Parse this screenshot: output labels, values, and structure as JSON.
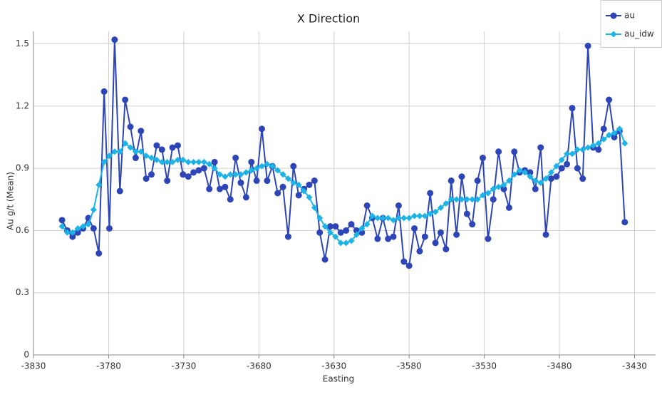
{
  "chart_data": {
    "type": "line",
    "title": "X Direction",
    "xlabel": "Easting",
    "ylabel": "Au g/t (Mean)",
    "x": [
      -3811,
      -3807.5,
      -3804,
      -3800.5,
      -3797,
      -3793.5,
      -3790,
      -3786.5,
      -3783,
      -3779.5,
      -3776,
      -3772.5,
      -3769,
      -3765.5,
      -3762,
      -3758.5,
      -3755,
      -3751.5,
      -3748,
      -3744.5,
      -3741,
      -3737.5,
      -3734,
      -3730.5,
      -3727,
      -3723.5,
      -3720,
      -3716.5,
      -3713,
      -3709.5,
      -3706,
      -3702.5,
      -3699,
      -3695.5,
      -3692,
      -3688.5,
      -3685,
      -3681.5,
      -3678,
      -3674.5,
      -3671,
      -3667.5,
      -3664,
      -3660.5,
      -3657,
      -3653.5,
      -3650,
      -3646.5,
      -3643,
      -3639.5,
      -3636,
      -3632.5,
      -3629,
      -3625.5,
      -3622,
      -3618.5,
      -3615,
      -3611.5,
      -3608,
      -3604.5,
      -3601,
      -3597.5,
      -3594,
      -3590.5,
      -3587,
      -3583.5,
      -3580,
      -3576.5,
      -3573,
      -3569.5,
      -3566,
      -3562.5,
      -3559,
      -3555.5,
      -3552,
      -3548.5,
      -3545,
      -3541.5,
      -3538,
      -3534.5,
      -3531,
      -3527.5,
      -3524,
      -3520.5,
      -3517,
      -3513.5,
      -3510,
      -3506.5,
      -3503,
      -3499.5,
      -3496,
      -3492.5,
      -3489,
      -3485.5,
      -3482,
      -3478.5,
      -3475,
      -3471.5,
      -3468,
      -3464.5,
      -3461,
      -3457.5,
      -3454,
      -3450.5,
      -3447,
      -3443.5,
      -3440,
      -3436.5
    ],
    "series": [
      {
        "name": "au",
        "color": "#2e45b8",
        "marker": "circle",
        "values": [
          0.65,
          0.6,
          0.57,
          0.59,
          0.61,
          0.66,
          0.61,
          0.49,
          1.27,
          0.61,
          1.52,
          0.79,
          1.23,
          1.1,
          0.95,
          1.08,
          0.85,
          0.87,
          1.01,
          0.99,
          0.84,
          1.0,
          1.01,
          0.87,
          0.86,
          0.88,
          0.89,
          0.9,
          0.8,
          0.93,
          0.8,
          0.81,
          0.75,
          0.95,
          0.83,
          0.76,
          0.93,
          0.84,
          1.09,
          0.84,
          0.91,
          0.78,
          0.81,
          0.57,
          0.91,
          0.77,
          0.8,
          0.82,
          0.84,
          0.59,
          0.46,
          0.62,
          0.62,
          0.59,
          0.6,
          0.63,
          0.6,
          0.59,
          0.72,
          0.66,
          0.56,
          0.66,
          0.56,
          0.57,
          0.72,
          0.45,
          0.43,
          0.61,
          0.5,
          0.57,
          0.78,
          0.54,
          0.59,
          0.51,
          0.84,
          0.58,
          0.86,
          0.68,
          0.63,
          0.84,
          0.95,
          0.56,
          0.75,
          0.98,
          0.8,
          0.71,
          0.98,
          0.88,
          0.89,
          0.88,
          0.8,
          1.0,
          0.58,
          0.85,
          0.86,
          0.9,
          0.92,
          1.19,
          0.9,
          0.85,
          1.49,
          1.0,
          0.99,
          1.09,
          1.23,
          1.05,
          1.08,
          0.64
        ]
      },
      {
        "name": "au_idw",
        "color": "#1cb3e6",
        "marker": "diamond",
        "values": [
          0.62,
          0.59,
          0.59,
          0.61,
          0.62,
          0.63,
          0.7,
          0.82,
          0.93,
          0.96,
          0.98,
          0.98,
          1.02,
          1.0,
          0.98,
          0.98,
          0.96,
          0.95,
          0.94,
          0.93,
          0.93,
          0.93,
          0.94,
          0.94,
          0.93,
          0.93,
          0.93,
          0.93,
          0.92,
          0.9,
          0.87,
          0.86,
          0.87,
          0.87,
          0.87,
          0.88,
          0.89,
          0.9,
          0.91,
          0.92,
          0.91,
          0.89,
          0.87,
          0.85,
          0.83,
          0.82,
          0.79,
          0.76,
          0.71,
          0.66,
          0.62,
          0.59,
          0.57,
          0.54,
          0.54,
          0.55,
          0.58,
          0.61,
          0.63,
          0.67,
          0.66,
          0.66,
          0.66,
          0.65,
          0.66,
          0.66,
          0.66,
          0.67,
          0.67,
          0.67,
          0.68,
          0.69,
          0.71,
          0.73,
          0.75,
          0.75,
          0.75,
          0.75,
          0.75,
          0.75,
          0.77,
          0.78,
          0.8,
          0.81,
          0.82,
          0.84,
          0.87,
          0.89,
          0.88,
          0.86,
          0.84,
          0.83,
          0.85,
          0.88,
          0.91,
          0.94,
          0.97,
          0.97,
          0.99,
          0.99,
          1.0,
          1.01,
          1.02,
          1.04,
          1.06,
          1.07,
          1.09,
          1.02
        ]
      }
    ],
    "xlim": [
      -3830,
      -3416
    ],
    "xticks": [
      -3830,
      -3780,
      -3730,
      -3680,
      -3630,
      -3580,
      -3530,
      -3480,
      -3430
    ],
    "ylim": [
      0,
      1.56
    ],
    "yticks": [
      0,
      0.3,
      0.6,
      0.9,
      1.2,
      1.5
    ],
    "grid": true,
    "legend": "top-right"
  }
}
